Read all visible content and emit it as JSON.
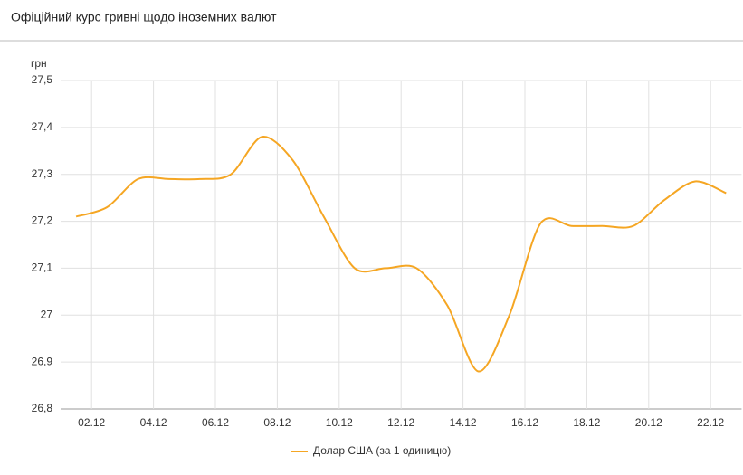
{
  "chart_data": {
    "type": "line",
    "title": "Офіційний курс гривні щодо іноземних валют",
    "y_label": "грн",
    "categories": [
      null,
      "02.12",
      null,
      "04.12",
      null,
      "06.12",
      null,
      "08.12",
      null,
      "10.12",
      null,
      "12.12",
      null,
      "14.12",
      null,
      "16.12",
      null,
      "18.12",
      null,
      "20.12",
      null,
      "22.12"
    ],
    "series": [
      {
        "name": "Долар США (за 1 одиницю)",
        "color": "#f5a623",
        "values": [
          27.21,
          27.23,
          27.29,
          27.29,
          27.29,
          27.3,
          27.38,
          27.33,
          27.21,
          27.1,
          27.1,
          27.1,
          27.02,
          26.88,
          27.0,
          27.195,
          27.19,
          27.19,
          27.19,
          27.245,
          27.285,
          27.26
        ]
      }
    ],
    "ylim": [
      26.8,
      27.5
    ],
    "yticks": [
      {
        "value": 26.8,
        "label": "26,8"
      },
      {
        "value": 26.9,
        "label": "26,9"
      },
      27,
      {
        "value": 27.1,
        "label": "27,1"
      },
      {
        "value": 27.2,
        "label": "27,2"
      },
      {
        "value": 27.3,
        "label": "27,3"
      },
      {
        "value": 27.4,
        "label": "27,4"
      },
      {
        "value": 27.5,
        "label": "27,5"
      }
    ],
    "grid": true,
    "legend": "bottom"
  }
}
